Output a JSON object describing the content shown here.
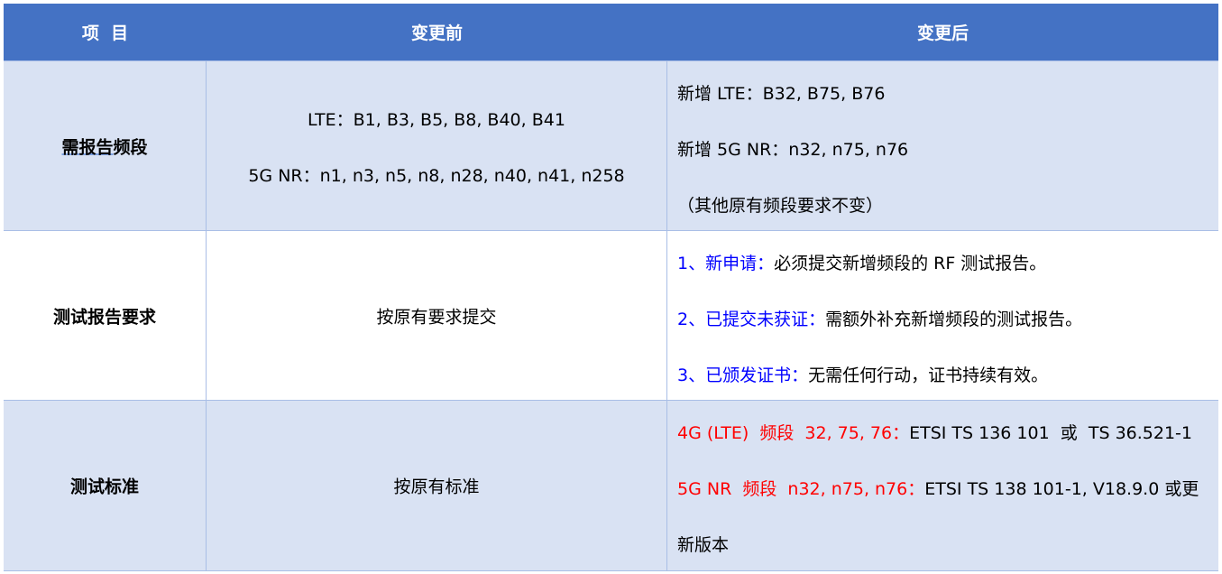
{
  "header": {
    "item": "项  目",
    "before": "变更前",
    "after": "变更后"
  },
  "rows": [
    {
      "item_underlined": "需报告",
      "item_rest": "频段",
      "before": [
        "LTE：B1, B3, B5, B8, B40, B41",
        "5G NR：n1, n3, n5, n8, n28, n40, n41, n258"
      ],
      "after": [
        "新增 LTE：B32, B75, B76",
        "新增 5G NR：n32, n75, n76",
        "（其他原有频段要求不变）"
      ]
    },
    {
      "item": "测试报告要求",
      "before": "按原有要求提交",
      "after": [
        {
          "lead": "1、新申请：",
          "text": "必须提交新增频段的 RF 测试报告。"
        },
        {
          "lead": "2、已提交未获证：",
          "text": "需额外补充新增频段的测试报告。"
        },
        {
          "lead": "3、已颁发证书：",
          "text": "无需任何行动，证书持续有效。"
        }
      ]
    },
    {
      "item": "测试标准",
      "before": "按原有标准",
      "after": [
        {
          "lead": "4G (LTE)  频段  32, 75, 76：",
          "text": "ETSI TS 136 101  或  TS 36.521-1"
        },
        {
          "lead": "5G NR  频段  n32, n75, n76：",
          "text": "ETSI TS 138 101-1, V18.9.0 或更"
        },
        {
          "lead": "",
          "text": "新版本"
        }
      ]
    }
  ],
  "colors": {
    "header_bg": "#4472C4",
    "band_bg": "#D9E2F3",
    "lead_blue": "#0000FF",
    "lead_red": "#FF0000"
  }
}
